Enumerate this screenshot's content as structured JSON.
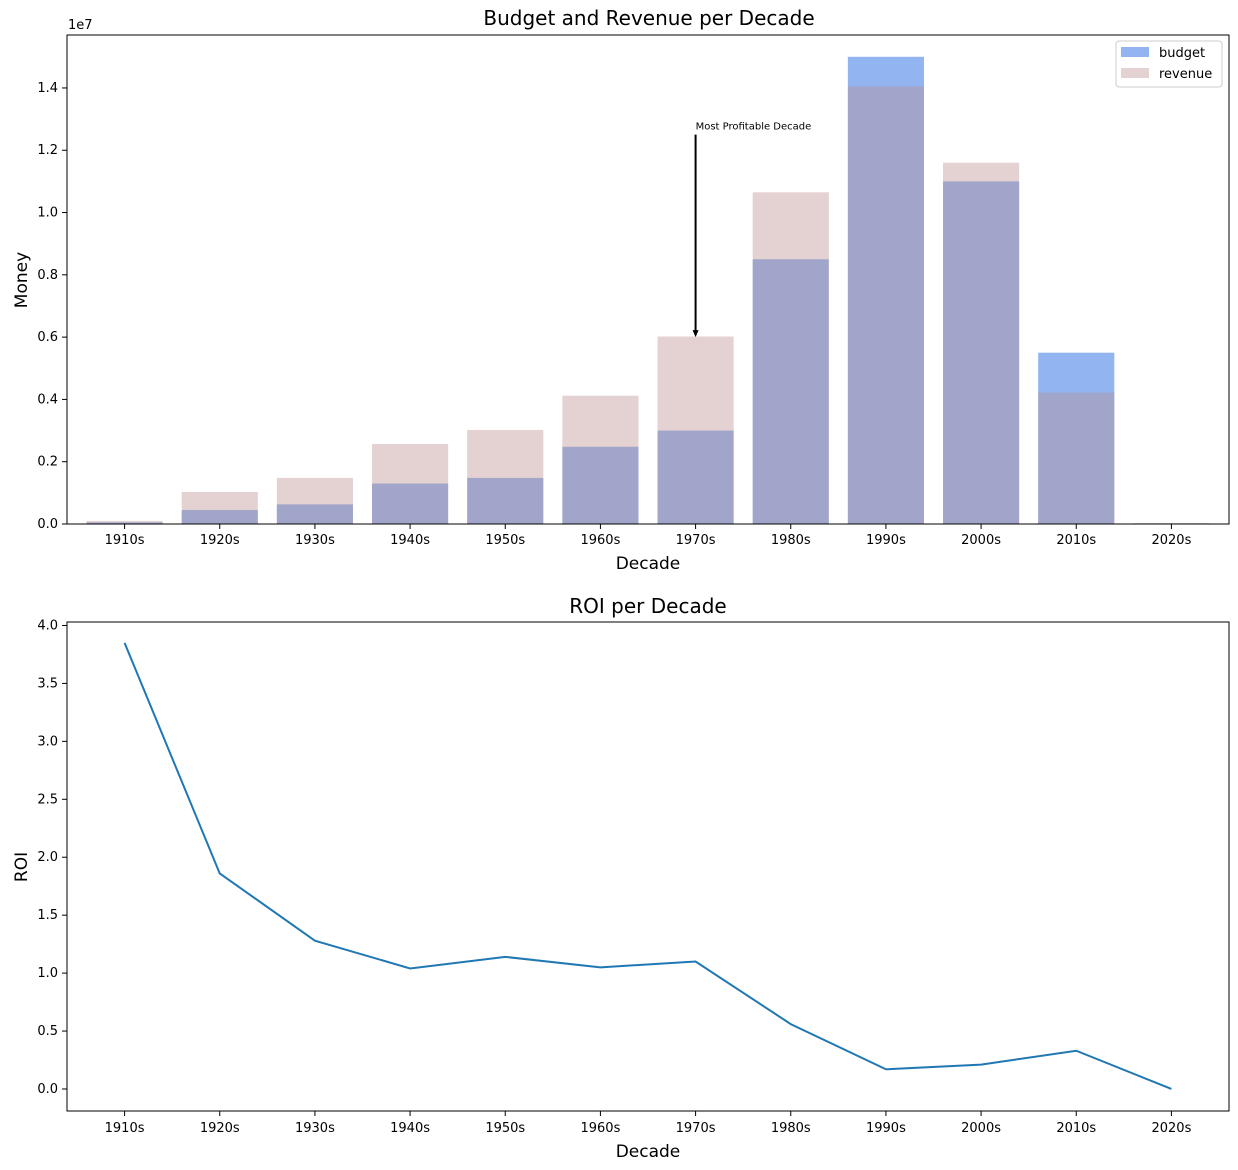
{
  "chart_data": [
    {
      "type": "bar",
      "title": "Budget and Revenue per Decade",
      "xlabel": "Decade",
      "ylabel": "Money",
      "y_offset_label": "1e7",
      "categories": [
        "1910s",
        "1920s",
        "1930s",
        "1940s",
        "1950s",
        "1960s",
        "1970s",
        "1980s",
        "1990s",
        "2000s",
        "2010s",
        "2020s"
      ],
      "ylim": [
        0,
        15700000
      ],
      "yticks": [
        0,
        2000000,
        4000000,
        6000000,
        8000000,
        10000000,
        12000000,
        14000000
      ],
      "ytick_labels": [
        "0.0",
        "0.2",
        "0.4",
        "0.6",
        "0.8",
        "1.0",
        "1.2",
        "1.4"
      ],
      "series": [
        {
          "name": "budget",
          "color": "#6495ED",
          "opacity": 0.7,
          "values": [
            50000,
            450000,
            630000,
            1300000,
            1480000,
            2480000,
            3000000,
            8500000,
            15000000,
            11000000,
            5500000,
            20000
          ]
        },
        {
          "name": "revenue",
          "color": "#BC8F8F",
          "opacity": 0.4,
          "values": [
            100000,
            1030000,
            1480000,
            2570000,
            3020000,
            4120000,
            6020000,
            10650000,
            14050000,
            11600000,
            4220000,
            20000
          ]
        }
      ],
      "legend_position": "top-right",
      "annotation": {
        "text": "Most Profitable Decade",
        "category": "1970s",
        "arrow_from_y": 12500000,
        "arrow_to_y": 6000000
      }
    },
    {
      "type": "line",
      "title": "ROI per Decade",
      "xlabel": "Decade",
      "ylabel": "ROI",
      "categories": [
        "1910s",
        "1920s",
        "1930s",
        "1940s",
        "1950s",
        "1960s",
        "1970s",
        "1980s",
        "1990s",
        "2000s",
        "2010s",
        "2020s"
      ],
      "ylim": [
        -0.19,
        4.03
      ],
      "yticks": [
        0.0,
        0.5,
        1.0,
        1.5,
        2.0,
        2.5,
        3.0,
        3.5,
        4.0
      ],
      "ytick_labels": [
        "0.0",
        "0.5",
        "1.0",
        "1.5",
        "2.0",
        "2.5",
        "3.0",
        "3.5",
        "4.0"
      ],
      "series": [
        {
          "color": "#1f77b4",
          "values": [
            3.85,
            1.86,
            1.28,
            1.04,
            1.14,
            1.05,
            1.1,
            0.56,
            0.17,
            0.21,
            0.33,
            0.0
          ]
        }
      ]
    }
  ]
}
